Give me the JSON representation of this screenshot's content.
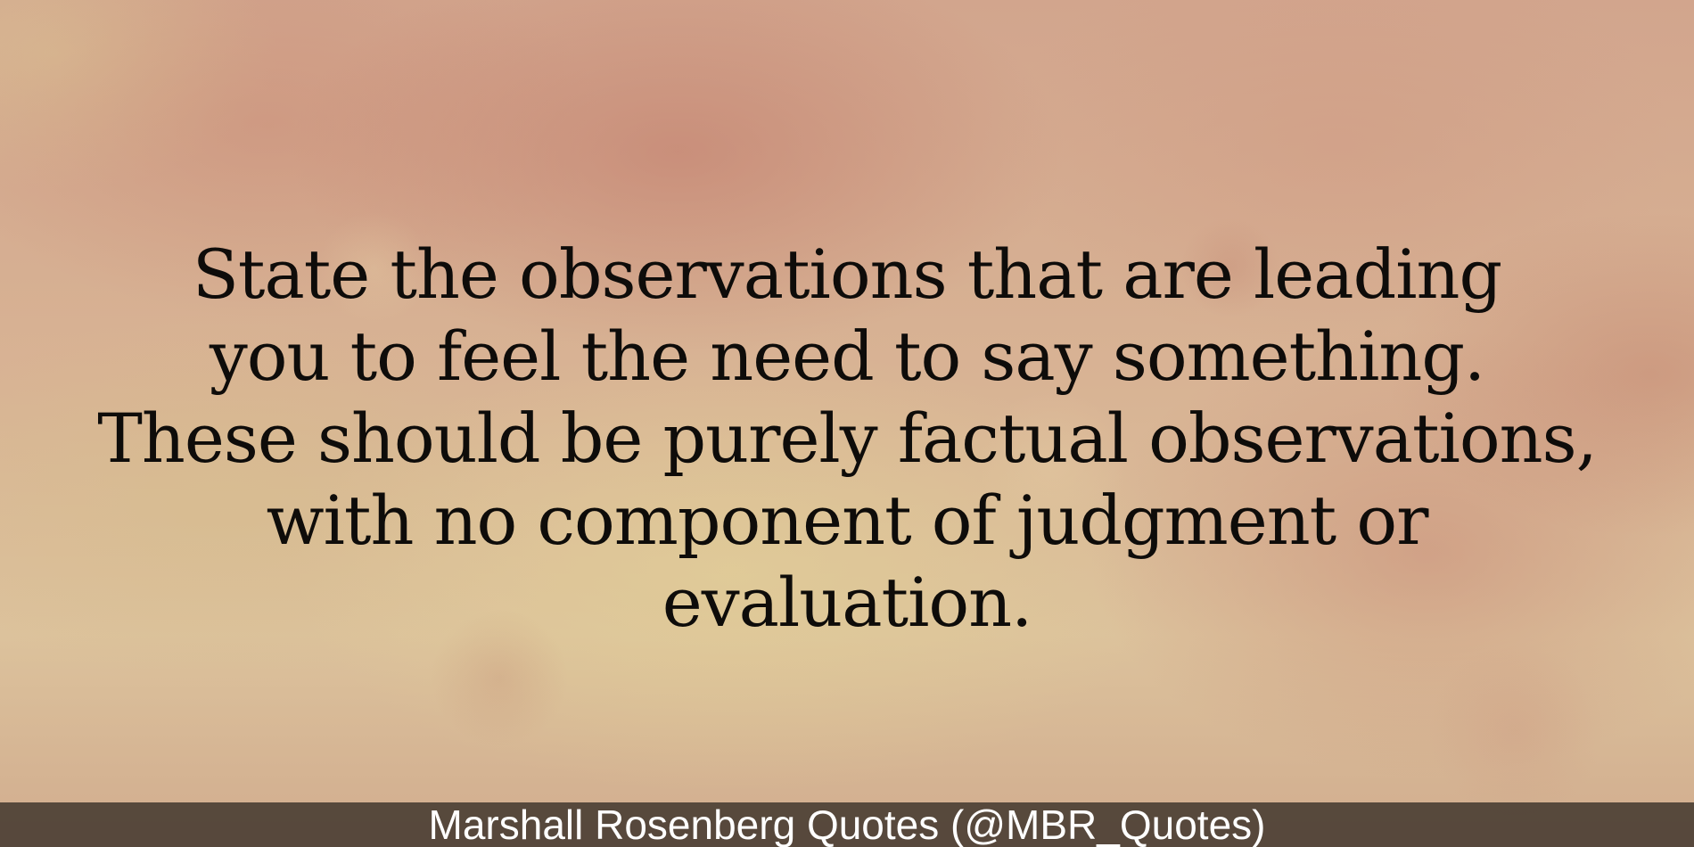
{
  "quote": {
    "lines": [
      "State the observations that are leading",
      "you to feel the need to say something.",
      "These should be purely factual observations,",
      "with no component of judgment or",
      "evaluation."
    ]
  },
  "footer": {
    "attribution": "Marshall Rosenberg Quotes (@MBR_Quotes)"
  }
}
